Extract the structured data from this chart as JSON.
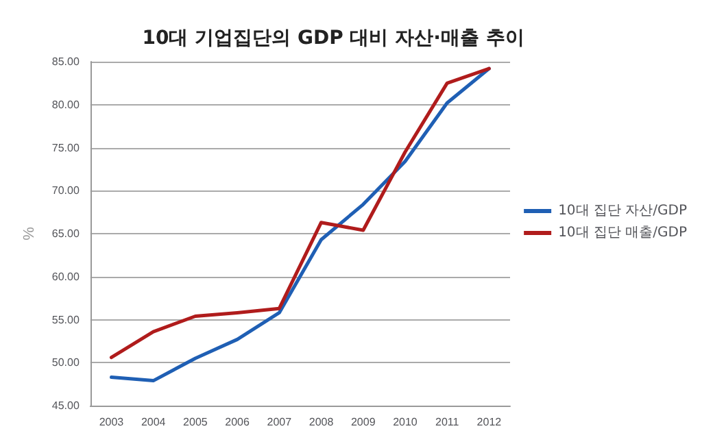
{
  "chart_data": {
    "type": "line",
    "title": "10대 기업집단의 GDP 대비 자산·매출 추이",
    "ylabel": "%",
    "categories": [
      "2003",
      "2004",
      "2005",
      "2006",
      "2007",
      "2008",
      "2009",
      "2010",
      "2011",
      "2012"
    ],
    "series": [
      {
        "name": "10대 집단 자산/GDP",
        "color": "#1f5fb4",
        "values": [
          48.3,
          47.9,
          50.5,
          52.7,
          55.8,
          64.3,
          68.4,
          73.4,
          80.2,
          84.2
        ]
      },
      {
        "name": "10대 집단 매출/GDP",
        "color": "#b01c1c",
        "values": [
          50.6,
          53.6,
          55.4,
          55.8,
          56.3,
          66.3,
          65.4,
          74.5,
          82.5,
          84.2
        ]
      }
    ],
    "ylim": [
      45,
      85
    ],
    "yticks": [
      {
        "value": 45,
        "label": "45.00"
      },
      {
        "value": 50,
        "label": "50.00"
      },
      {
        "value": 55,
        "label": "55.00"
      },
      {
        "value": 60,
        "label": "60.00"
      },
      {
        "value": 65,
        "label": "65.00"
      },
      {
        "value": 70,
        "label": "70.00"
      },
      {
        "value": 75,
        "label": "75.00"
      },
      {
        "value": 80,
        "label": "80.00"
      },
      {
        "value": 85,
        "label": "85.00"
      }
    ],
    "grid": "y",
    "legend": "right",
    "marker": "none",
    "line_style": "solid"
  }
}
